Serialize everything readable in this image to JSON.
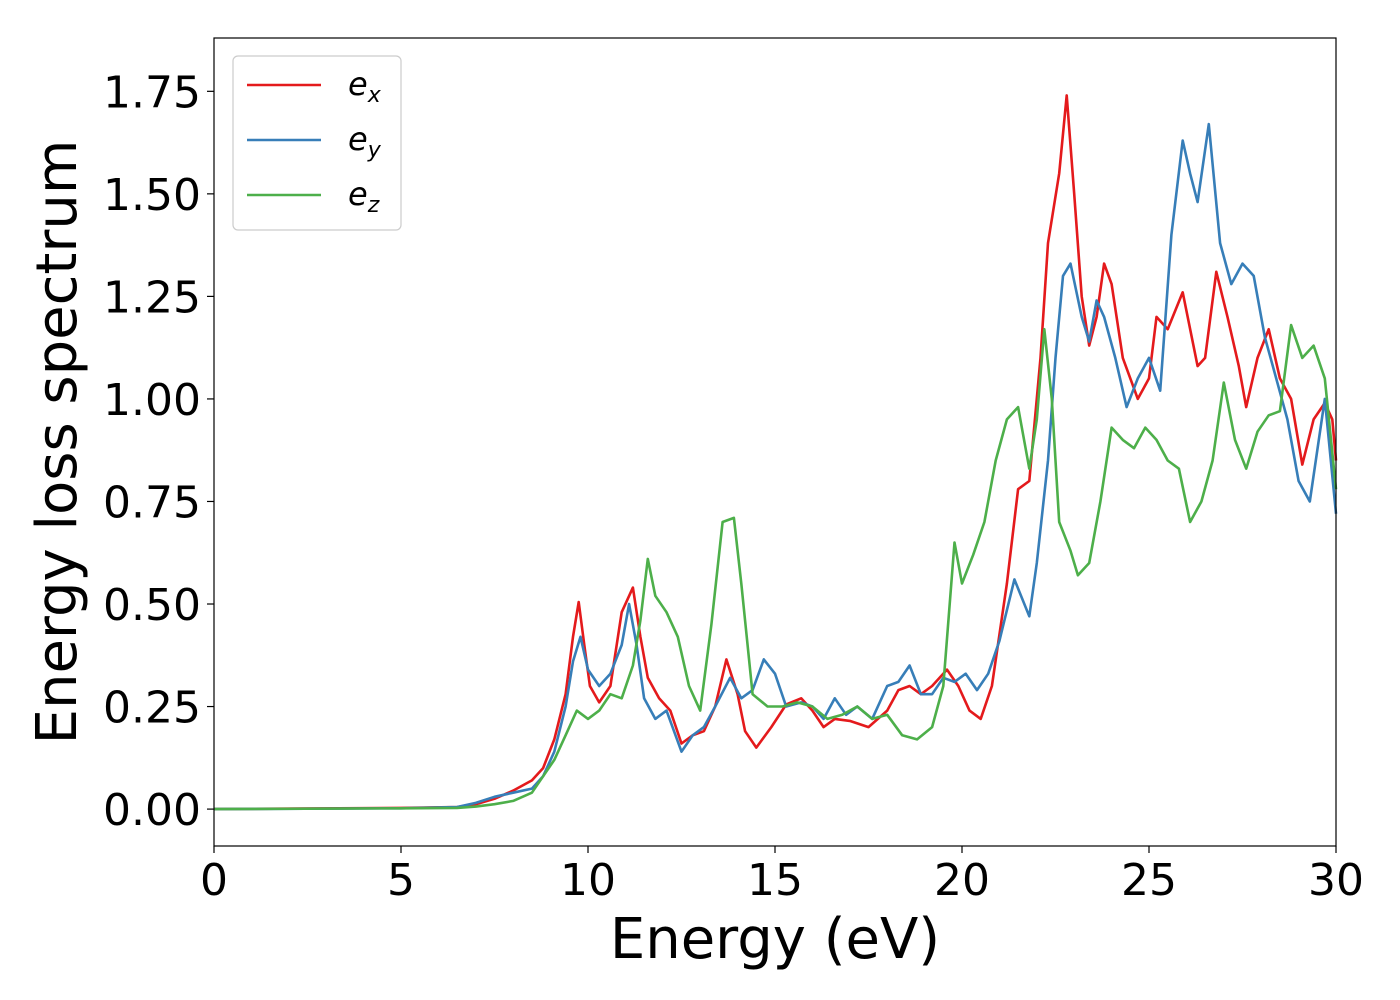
{
  "chart_data": {
    "type": "line",
    "title": "",
    "xlabel": "Energy (eV)",
    "ylabel": "Energy loss spectrum",
    "xlim": [
      0,
      30
    ],
    "ylim": [
      -0.09,
      1.88
    ],
    "xticks": [
      0,
      5,
      10,
      15,
      20,
      25,
      30
    ],
    "xtick_labels": [
      "0",
      "5",
      "10",
      "15",
      "20",
      "25",
      "30"
    ],
    "yticks": [
      0,
      0.25,
      0.5,
      0.75,
      1.0,
      1.25,
      1.5,
      1.75
    ],
    "ytick_labels": [
      "0.00",
      "0.25",
      "0.50",
      "0.75",
      "1.00",
      "1.25",
      "1.50",
      "1.75"
    ],
    "grid": false,
    "legend_position": "upper-left",
    "series": [
      {
        "name": "e_x",
        "label_base": "e",
        "label_sub": "x",
        "color": "#e41a1c",
        "points": [
          [
            0,
            0
          ],
          [
            5,
            0.003
          ],
          [
            6.5,
            0.005
          ],
          [
            7,
            0.012
          ],
          [
            7.5,
            0.025
          ],
          [
            8,
            0.045
          ],
          [
            8.5,
            0.07
          ],
          [
            8.8,
            0.1
          ],
          [
            9.1,
            0.17
          ],
          [
            9.4,
            0.28
          ],
          [
            9.6,
            0.42
          ],
          [
            9.75,
            0.505
          ],
          [
            9.9,
            0.4
          ],
          [
            10.05,
            0.3
          ],
          [
            10.3,
            0.26
          ],
          [
            10.6,
            0.3
          ],
          [
            10.9,
            0.48
          ],
          [
            11.2,
            0.54
          ],
          [
            11.4,
            0.42
          ],
          [
            11.6,
            0.32
          ],
          [
            11.9,
            0.27
          ],
          [
            12.2,
            0.24
          ],
          [
            12.5,
            0.16
          ],
          [
            12.8,
            0.18
          ],
          [
            13.1,
            0.19
          ],
          [
            13.4,
            0.25
          ],
          [
            13.7,
            0.365
          ],
          [
            14.0,
            0.28
          ],
          [
            14.2,
            0.19
          ],
          [
            14.5,
            0.15
          ],
          [
            14.9,
            0.2
          ],
          [
            15.3,
            0.255
          ],
          [
            15.7,
            0.27
          ],
          [
            16.0,
            0.24
          ],
          [
            16.3,
            0.2
          ],
          [
            16.6,
            0.22
          ],
          [
            17.0,
            0.215
          ],
          [
            17.5,
            0.2
          ],
          [
            18.0,
            0.24
          ],
          [
            18.3,
            0.29
          ],
          [
            18.6,
            0.3
          ],
          [
            18.9,
            0.28
          ],
          [
            19.2,
            0.3
          ],
          [
            19.6,
            0.34
          ],
          [
            19.9,
            0.3
          ],
          [
            20.2,
            0.24
          ],
          [
            20.5,
            0.22
          ],
          [
            20.8,
            0.3
          ],
          [
            21.2,
            0.55
          ],
          [
            21.5,
            0.78
          ],
          [
            21.8,
            0.8
          ],
          [
            22.1,
            1.1
          ],
          [
            22.3,
            1.38
          ],
          [
            22.6,
            1.55
          ],
          [
            22.8,
            1.74
          ],
          [
            23.0,
            1.5
          ],
          [
            23.2,
            1.25
          ],
          [
            23.4,
            1.13
          ],
          [
            23.6,
            1.2
          ],
          [
            23.8,
            1.33
          ],
          [
            24.0,
            1.28
          ],
          [
            24.3,
            1.1
          ],
          [
            24.7,
            1.0
          ],
          [
            25.0,
            1.05
          ],
          [
            25.2,
            1.2
          ],
          [
            25.5,
            1.17
          ],
          [
            25.9,
            1.26
          ],
          [
            26.3,
            1.08
          ],
          [
            26.5,
            1.1
          ],
          [
            26.8,
            1.31
          ],
          [
            27.1,
            1.2
          ],
          [
            27.4,
            1.08
          ],
          [
            27.6,
            0.98
          ],
          [
            27.9,
            1.1
          ],
          [
            28.2,
            1.17
          ],
          [
            28.5,
            1.05
          ],
          [
            28.8,
            1.0
          ],
          [
            29.1,
            0.84
          ],
          [
            29.4,
            0.95
          ],
          [
            29.7,
            0.99
          ],
          [
            29.9,
            0.95
          ],
          [
            30.0,
            0.85
          ]
        ]
      },
      {
        "name": "e_y",
        "label_base": "e",
        "label_sub": "y",
        "color": "#377eb8",
        "points": [
          [
            0,
            0
          ],
          [
            5,
            0.002
          ],
          [
            6.5,
            0.005
          ],
          [
            7,
            0.015
          ],
          [
            7.5,
            0.03
          ],
          [
            8,
            0.04
          ],
          [
            8.5,
            0.05
          ],
          [
            8.8,
            0.08
          ],
          [
            9.1,
            0.14
          ],
          [
            9.4,
            0.25
          ],
          [
            9.6,
            0.36
          ],
          [
            9.8,
            0.42
          ],
          [
            10.0,
            0.34
          ],
          [
            10.3,
            0.3
          ],
          [
            10.6,
            0.33
          ],
          [
            10.9,
            0.4
          ],
          [
            11.1,
            0.5
          ],
          [
            11.3,
            0.4
          ],
          [
            11.5,
            0.27
          ],
          [
            11.8,
            0.22
          ],
          [
            12.1,
            0.24
          ],
          [
            12.5,
            0.14
          ],
          [
            12.8,
            0.18
          ],
          [
            13.1,
            0.2
          ],
          [
            13.4,
            0.25
          ],
          [
            13.8,
            0.32
          ],
          [
            14.1,
            0.27
          ],
          [
            14.4,
            0.29
          ],
          [
            14.7,
            0.365
          ],
          [
            15.0,
            0.33
          ],
          [
            15.3,
            0.25
          ],
          [
            15.7,
            0.26
          ],
          [
            16.0,
            0.25
          ],
          [
            16.3,
            0.22
          ],
          [
            16.6,
            0.27
          ],
          [
            16.9,
            0.23
          ],
          [
            17.2,
            0.25
          ],
          [
            17.6,
            0.22
          ],
          [
            18.0,
            0.3
          ],
          [
            18.3,
            0.31
          ],
          [
            18.6,
            0.35
          ],
          [
            18.9,
            0.28
          ],
          [
            19.2,
            0.28
          ],
          [
            19.5,
            0.32
          ],
          [
            19.8,
            0.31
          ],
          [
            20.1,
            0.33
          ],
          [
            20.4,
            0.29
          ],
          [
            20.7,
            0.33
          ],
          [
            21.0,
            0.41
          ],
          [
            21.4,
            0.56
          ],
          [
            21.8,
            0.47
          ],
          [
            22.0,
            0.6
          ],
          [
            22.3,
            0.85
          ],
          [
            22.5,
            1.1
          ],
          [
            22.7,
            1.3
          ],
          [
            22.9,
            1.33
          ],
          [
            23.2,
            1.2
          ],
          [
            23.4,
            1.14
          ],
          [
            23.6,
            1.24
          ],
          [
            23.8,
            1.2
          ],
          [
            24.1,
            1.1
          ],
          [
            24.4,
            0.98
          ],
          [
            24.7,
            1.05
          ],
          [
            25.0,
            1.1
          ],
          [
            25.3,
            1.02
          ],
          [
            25.6,
            1.4
          ],
          [
            25.9,
            1.63
          ],
          [
            26.1,
            1.55
          ],
          [
            26.3,
            1.48
          ],
          [
            26.6,
            1.67
          ],
          [
            26.9,
            1.38
          ],
          [
            27.2,
            1.28
          ],
          [
            27.5,
            1.33
          ],
          [
            27.8,
            1.3
          ],
          [
            28.1,
            1.15
          ],
          [
            28.4,
            1.05
          ],
          [
            28.7,
            0.95
          ],
          [
            29.0,
            0.8
          ],
          [
            29.3,
            0.75
          ],
          [
            29.7,
            1.0
          ],
          [
            30.0,
            0.72
          ]
        ]
      },
      {
        "name": "e_z",
        "label_base": "e",
        "label_sub": "z",
        "color": "#4daf4a",
        "points": [
          [
            0,
            0
          ],
          [
            5,
            0.002
          ],
          [
            6.5,
            0.003
          ],
          [
            7.0,
            0.006
          ],
          [
            7.5,
            0.012
          ],
          [
            8,
            0.02
          ],
          [
            8.5,
            0.04
          ],
          [
            8.8,
            0.08
          ],
          [
            9.1,
            0.12
          ],
          [
            9.4,
            0.18
          ],
          [
            9.7,
            0.24
          ],
          [
            10.0,
            0.22
          ],
          [
            10.3,
            0.24
          ],
          [
            10.6,
            0.28
          ],
          [
            10.9,
            0.27
          ],
          [
            11.2,
            0.35
          ],
          [
            11.4,
            0.46
          ],
          [
            11.6,
            0.61
          ],
          [
            11.8,
            0.52
          ],
          [
            12.1,
            0.48
          ],
          [
            12.4,
            0.42
          ],
          [
            12.7,
            0.3
          ],
          [
            13.0,
            0.24
          ],
          [
            13.3,
            0.45
          ],
          [
            13.6,
            0.7
          ],
          [
            13.9,
            0.71
          ],
          [
            14.1,
            0.55
          ],
          [
            14.4,
            0.28
          ],
          [
            14.8,
            0.25
          ],
          [
            15.2,
            0.25
          ],
          [
            15.6,
            0.26
          ],
          [
            16.0,
            0.25
          ],
          [
            16.4,
            0.22
          ],
          [
            16.8,
            0.23
          ],
          [
            17.2,
            0.25
          ],
          [
            17.6,
            0.22
          ],
          [
            18.0,
            0.23
          ],
          [
            18.4,
            0.18
          ],
          [
            18.8,
            0.17
          ],
          [
            19.2,
            0.2
          ],
          [
            19.5,
            0.3
          ],
          [
            19.8,
            0.65
          ],
          [
            20.0,
            0.55
          ],
          [
            20.3,
            0.62
          ],
          [
            20.6,
            0.7
          ],
          [
            20.9,
            0.85
          ],
          [
            21.2,
            0.95
          ],
          [
            21.5,
            0.98
          ],
          [
            21.8,
            0.83
          ],
          [
            22.0,
            0.95
          ],
          [
            22.2,
            1.17
          ],
          [
            22.4,
            1.0
          ],
          [
            22.6,
            0.7
          ],
          [
            22.9,
            0.63
          ],
          [
            23.1,
            0.57
          ],
          [
            23.4,
            0.6
          ],
          [
            23.7,
            0.75
          ],
          [
            24.0,
            0.93
          ],
          [
            24.3,
            0.9
          ],
          [
            24.6,
            0.88
          ],
          [
            24.9,
            0.93
          ],
          [
            25.2,
            0.9
          ],
          [
            25.5,
            0.85
          ],
          [
            25.8,
            0.83
          ],
          [
            26.1,
            0.7
          ],
          [
            26.4,
            0.75
          ],
          [
            26.7,
            0.85
          ],
          [
            27.0,
            1.04
          ],
          [
            27.3,
            0.9
          ],
          [
            27.6,
            0.83
          ],
          [
            27.9,
            0.92
          ],
          [
            28.2,
            0.96
          ],
          [
            28.5,
            0.97
          ],
          [
            28.8,
            1.18
          ],
          [
            29.1,
            1.1
          ],
          [
            29.4,
            1.13
          ],
          [
            29.7,
            1.05
          ],
          [
            30.0,
            0.78
          ]
        ]
      }
    ]
  }
}
